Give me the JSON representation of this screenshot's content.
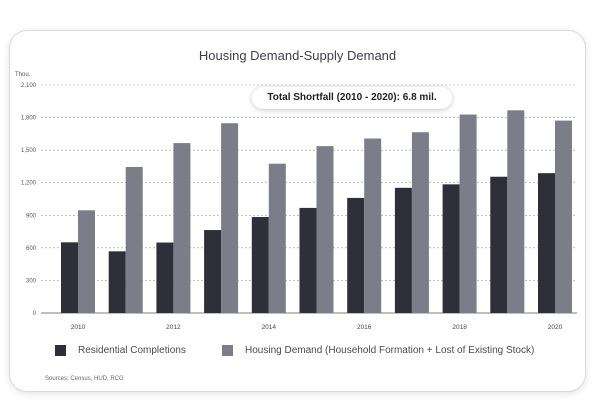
{
  "chart_data": {
    "type": "bar",
    "title": "Housing Demand-Supply Demand",
    "ylabel": "Thou.",
    "xlabel": "",
    "ylim": [
      0,
      2100
    ],
    "yticks": [
      0,
      300,
      600,
      900,
      1200,
      1500,
      1800,
      2100
    ],
    "ytick_labels": [
      "0",
      "300",
      "600",
      "900",
      "1,200",
      "1,500",
      "1,800",
      "2,100"
    ],
    "categories": [
      "2010",
      "2011",
      "2012",
      "2013",
      "2014",
      "2015",
      "2016",
      "2017",
      "2018",
      "2019",
      "2020"
    ],
    "xtick_labels": [
      "2010",
      "",
      "2012",
      "",
      "2014",
      "",
      "2016",
      "",
      "2018",
      "",
      "2020"
    ],
    "series": [
      {
        "name": "Residential Completions",
        "color": "#2e2f38",
        "values": [
          651,
          568,
          649,
          764,
          884,
          968,
          1060,
          1153,
          1185,
          1255,
          1288
        ]
      },
      {
        "name": "Housing Demand (Household Formation + Lost of Existing Stock)",
        "color": "#7b7d89",
        "values": [
          946,
          1345,
          1565,
          1748,
          1375,
          1537,
          1607,
          1665,
          1828,
          1867,
          1772
        ]
      }
    ],
    "grid": true,
    "gridlines": "dashed horizontal",
    "legend_position": "bottom",
    "annotation": "Total Shortfall (2010 - 2020): 6.8 mil.",
    "source": "Sources: Census, HUD, RCG"
  }
}
